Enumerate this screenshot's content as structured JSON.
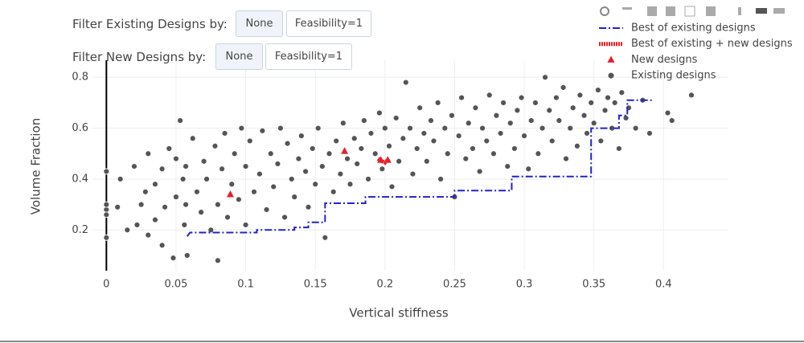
{
  "controls": {
    "existing_label": "Filter Existing Designs by:",
    "existing_buttons": [
      "None",
      "Feasibility=1"
    ],
    "new_label": "Filter New Designs by:",
    "new_buttons": [
      "None",
      "Feasibility=1"
    ]
  },
  "chart_data": {
    "type": "scatter",
    "x_label": "Vertical stiffness",
    "y_label": "Volume Fraction",
    "xlim": [
      -0.01,
      0.446
    ],
    "ylim": [
      0.04,
      0.867
    ],
    "xticks": [
      0,
      0.05,
      0.1,
      0.15,
      0.2,
      0.25,
      0.3,
      0.35,
      0.4
    ],
    "yticks": [
      0.2,
      0.4,
      0.6,
      0.8
    ],
    "grid": true,
    "x_zeroline": true,
    "legend": "top-right",
    "series": [
      {
        "name": "Best of existing designs",
        "mode": "line",
        "dash": "dashdot",
        "color": "#2222cc",
        "x": [
          0.058,
          0.06,
          0.108,
          0.108,
          0.135,
          0.135,
          0.145,
          0.145,
          0.157,
          0.157,
          0.186,
          0.186,
          0.25,
          0.25,
          0.291,
          0.291,
          0.348,
          0.348,
          0.368,
          0.368,
          0.374,
          0.374,
          0.392
        ],
        "values": [
          0.175,
          0.19,
          0.19,
          0.2,
          0.2,
          0.21,
          0.21,
          0.23,
          0.23,
          0.305,
          0.305,
          0.33,
          0.33,
          0.355,
          0.355,
          0.41,
          0.41,
          0.6,
          0.6,
          0.65,
          0.65,
          0.71,
          0.71
        ]
      },
      {
        "name": "Best of existing + new designs",
        "mode": "line",
        "dash": "dot",
        "color": "#e8202a",
        "x": [
          0.195,
          0.198,
          0.2,
          0.203
        ],
        "values": [
          0.48,
          0.47,
          0.465,
          0.48
        ]
      },
      {
        "name": "New designs",
        "mode": "triangle",
        "color": "#e8202a",
        "x": [
          0.089,
          0.171,
          0.197,
          0.202
        ],
        "values": [
          0.34,
          0.51,
          0.475,
          0.475
        ]
      },
      {
        "name": "Existing designs",
        "mode": "circle",
        "color": "#555555",
        "x": [
          0,
          0,
          0,
          0,
          0,
          0.008,
          0.01,
          0.015,
          0.02,
          0.022,
          0.025,
          0.028,
          0.03,
          0.03,
          0.035,
          0.035,
          0.04,
          0.04,
          0.042,
          0.045,
          0.048,
          0.05,
          0.05,
          0.053,
          0.055,
          0.056,
          0.057,
          0.057,
          0.058,
          0.062,
          0.065,
          0.068,
          0.07,
          0.072,
          0.075,
          0.078,
          0.08,
          0.08,
          0.083,
          0.085,
          0.087,
          0.09,
          0.092,
          0.095,
          0.097,
          0.1,
          0.1,
          0.103,
          0.106,
          0.11,
          0.112,
          0.115,
          0.118,
          0.12,
          0.123,
          0.125,
          0.128,
          0.13,
          0.133,
          0.135,
          0.138,
          0.14,
          0.143,
          0.145,
          0.148,
          0.15,
          0.152,
          0.155,
          0.157,
          0.16,
          0.163,
          0.165,
          0.168,
          0.17,
          0.173,
          0.175,
          0.178,
          0.18,
          0.183,
          0.185,
          0.188,
          0.19,
          0.193,
          0.196,
          0.198,
          0.2,
          0.203,
          0.205,
          0.208,
          0.21,
          0.213,
          0.215,
          0.218,
          0.22,
          0.223,
          0.225,
          0.228,
          0.23,
          0.233,
          0.235,
          0.238,
          0.24,
          0.243,
          0.245,
          0.248,
          0.25,
          0.253,
          0.255,
          0.258,
          0.26,
          0.263,
          0.265,
          0.268,
          0.27,
          0.273,
          0.275,
          0.278,
          0.28,
          0.283,
          0.285,
          0.288,
          0.29,
          0.293,
          0.295,
          0.298,
          0.3,
          0.303,
          0.305,
          0.308,
          0.31,
          0.313,
          0.315,
          0.318,
          0.32,
          0.323,
          0.325,
          0.328,
          0.33,
          0.333,
          0.335,
          0.338,
          0.34,
          0.343,
          0.345,
          0.348,
          0.35,
          0.353,
          0.355,
          0.358,
          0.36,
          0.363,
          0.365,
          0.368,
          0.37,
          0.373,
          0.375,
          0.38,
          0.385,
          0.39,
          0.403,
          0.406,
          0.42
        ],
        "values": [
          0.28,
          0.3,
          0.43,
          0.17,
          0.26,
          0.29,
          0.4,
          0.2,
          0.45,
          0.22,
          0.3,
          0.35,
          0.5,
          0.18,
          0.38,
          0.24,
          0.14,
          0.44,
          0.29,
          0.52,
          0.09,
          0.33,
          0.48,
          0.63,
          0.4,
          0.22,
          0.3,
          0.45,
          0.1,
          0.56,
          0.35,
          0.27,
          0.47,
          0.4,
          0.2,
          0.53,
          0.3,
          0.08,
          0.44,
          0.58,
          0.25,
          0.38,
          0.5,
          0.32,
          0.6,
          0.45,
          0.22,
          0.55,
          0.35,
          0.42,
          0.59,
          0.28,
          0.5,
          0.37,
          0.46,
          0.6,
          0.25,
          0.54,
          0.4,
          0.33,
          0.48,
          0.57,
          0.43,
          0.29,
          0.52,
          0.38,
          0.6,
          0.45,
          0.17,
          0.5,
          0.35,
          0.55,
          0.42,
          0.62,
          0.48,
          0.38,
          0.56,
          0.46,
          0.52,
          0.63,
          0.4,
          0.58,
          0.5,
          0.66,
          0.44,
          0.6,
          0.53,
          0.37,
          0.64,
          0.47,
          0.56,
          0.78,
          0.6,
          0.42,
          0.52,
          0.68,
          0.58,
          0.47,
          0.63,
          0.55,
          0.7,
          0.4,
          0.6,
          0.5,
          0.65,
          0.33,
          0.57,
          0.72,
          0.48,
          0.62,
          0.52,
          0.68,
          0.43,
          0.6,
          0.55,
          0.73,
          0.5,
          0.65,
          0.58,
          0.7,
          0.45,
          0.62,
          0.52,
          0.67,
          0.72,
          0.57,
          0.44,
          0.63,
          0.7,
          0.5,
          0.6,
          0.8,
          0.67,
          0.55,
          0.72,
          0.63,
          0.76,
          0.48,
          0.6,
          0.68,
          0.53,
          0.73,
          0.65,
          0.58,
          0.7,
          0.62,
          0.75,
          0.55,
          0.67,
          0.72,
          0.6,
          0.7,
          0.52,
          0.74,
          0.64,
          0.68,
          0.6,
          0.71,
          0.58,
          0.66,
          0.63,
          0.73
        ]
      }
    ]
  }
}
